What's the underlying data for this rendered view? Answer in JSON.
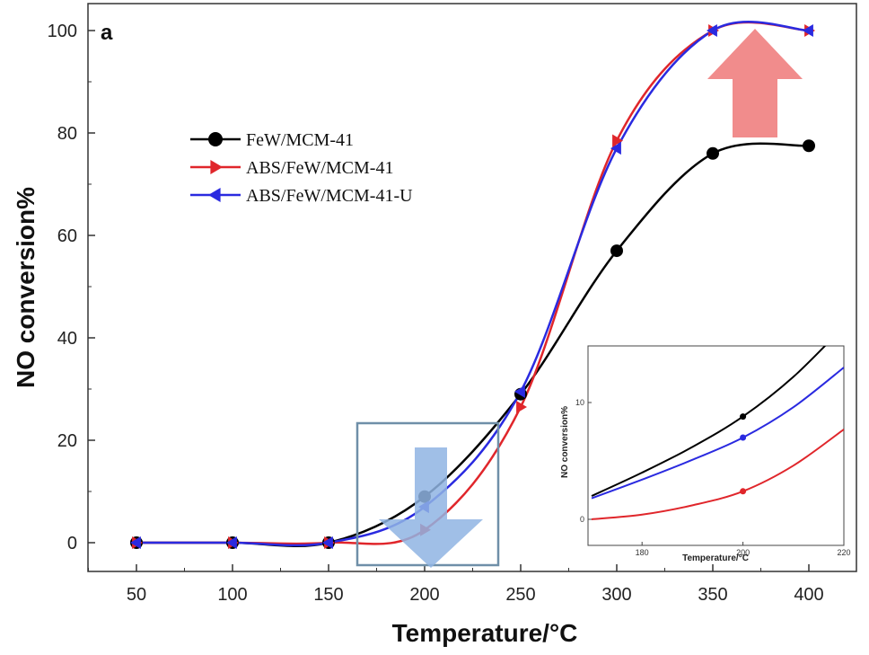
{
  "chart_data": [
    {
      "type": "line",
      "panel_label": "a",
      "title": "",
      "xlabel": "Temperature/°C",
      "ylabel": "NO conversion%",
      "xlim": [
        20,
        430
      ],
      "ylim": [
        -5,
        105
      ],
      "x_ticks": [
        50,
        100,
        150,
        200,
        250,
        300,
        350,
        400
      ],
      "y_ticks": [
        0,
        20,
        40,
        60,
        80,
        100
      ],
      "legend_position": "upper-left",
      "series": [
        {
          "name": "FeW/MCM-41",
          "color": "#000000",
          "marker": "circle",
          "x": [
            50,
            100,
            150,
            200,
            250,
            300,
            350,
            400
          ],
          "y": [
            0,
            0,
            0,
            9,
            29,
            57,
            76,
            77.5
          ]
        },
        {
          "name": "ABS/FeW/MCM-41",
          "color": "#e0262b",
          "marker": "triangle-right",
          "x": [
            50,
            100,
            150,
            200,
            250,
            300,
            350,
            400
          ],
          "y": [
            0,
            0,
            0,
            2.5,
            26.5,
            78.5,
            100,
            100
          ]
        },
        {
          "name": "ABS/FeW/MCM-41-U",
          "color": "#2a2ae0",
          "marker": "triangle-left",
          "x": [
            50,
            100,
            150,
            200,
            250,
            300,
            350,
            400
          ],
          "y": [
            0,
            0,
            0,
            7,
            29.5,
            77,
            100,
            100
          ]
        }
      ],
      "annotations": [
        {
          "type": "arrow-up",
          "color": "#f08080"
        },
        {
          "type": "arrow-down",
          "color": "#8fb4e3"
        },
        {
          "type": "zoom-box",
          "color": "#6f8fa8"
        }
      ]
    },
    {
      "type": "line",
      "role": "inset",
      "title": "",
      "xlabel": "Temperature/°C",
      "ylabel": "NO conversion%",
      "xlim": [
        170,
        220
      ],
      "ylim": [
        -1,
        15
      ],
      "x_ticks": [
        180,
        200,
        220
      ],
      "y_ticks": [
        0,
        10
      ],
      "series": [
        {
          "name": "FeW/MCM-41",
          "color": "#000000",
          "x": [
            170,
            180,
            190,
            200,
            210,
            220
          ],
          "y": [
            2,
            4,
            6.2,
            8.8,
            12.2,
            16.5
          ]
        },
        {
          "name": "ABS/FeW/MCM-41-U",
          "color": "#2a2ae0",
          "x": [
            170,
            180,
            190,
            200,
            210,
            220
          ],
          "y": [
            1.8,
            3.4,
            5.1,
            7,
            9.6,
            13
          ]
        },
        {
          "name": "ABS/FeW/MCM-41",
          "color": "#e0262b",
          "x": [
            170,
            180,
            190,
            200,
            210,
            220
          ],
          "y": [
            0,
            0.4,
            1.2,
            2.4,
            4.6,
            7.7
          ]
        }
      ]
    }
  ]
}
